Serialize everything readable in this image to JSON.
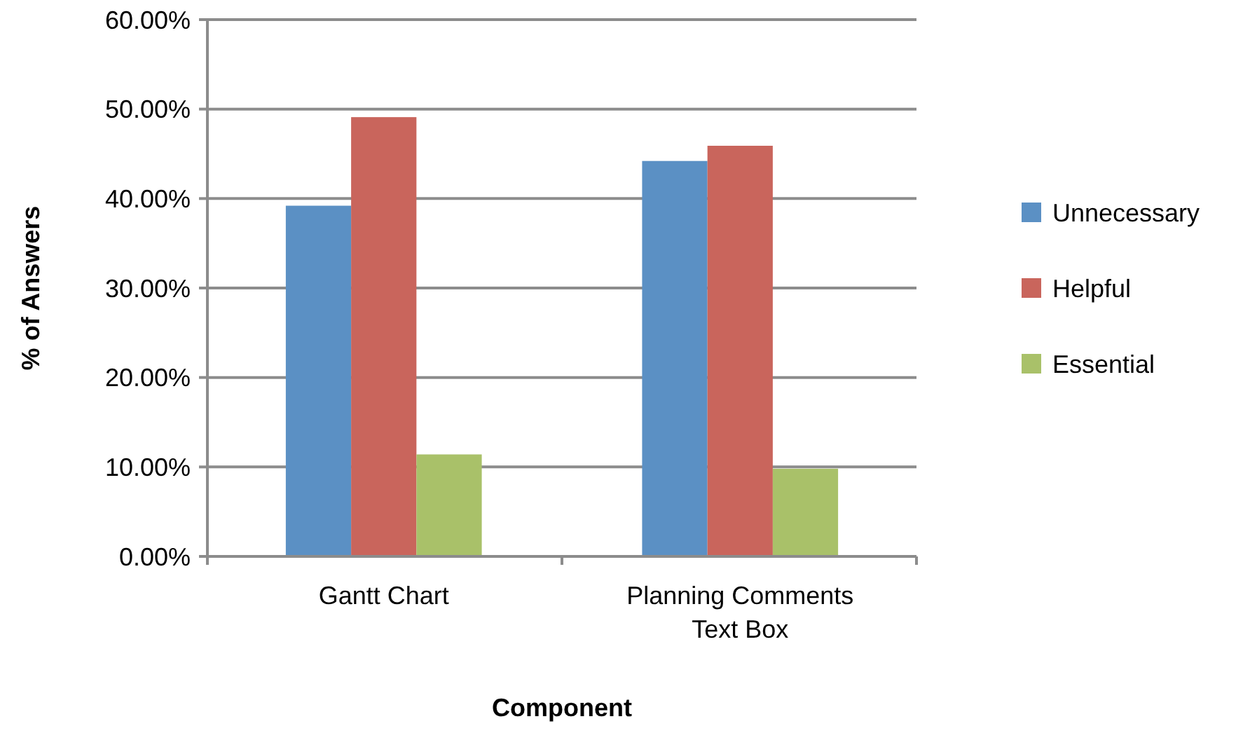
{
  "chart_data": {
    "type": "bar",
    "xlabel": "Component",
    "ylabel": "% of Answers",
    "categories": [
      "Gantt Chart",
      "Planning Comments Text Box"
    ],
    "series": [
      {
        "name": "Unnecessary",
        "color": "#5b90c4",
        "values": [
          39.2,
          44.2
        ]
      },
      {
        "name": "Helpful",
        "color": "#c9655c",
        "values": [
          49.1,
          45.9
        ]
      },
      {
        "name": "Essential",
        "color": "#a9c169",
        "values": [
          11.4,
          9.8
        ]
      }
    ],
    "ylim": [
      0,
      60
    ],
    "yticks": [
      {
        "value": 0,
        "label": "0.00%"
      },
      {
        "value": 10,
        "label": "10.00%"
      },
      {
        "value": 20,
        "label": "20.00%"
      },
      {
        "value": 30,
        "label": "30.00%"
      },
      {
        "value": 40,
        "label": "40.00%"
      },
      {
        "value": 50,
        "label": "50.00%"
      },
      {
        "value": 60,
        "label": "60.00%"
      }
    ],
    "grid": "y",
    "legend": "right"
  }
}
